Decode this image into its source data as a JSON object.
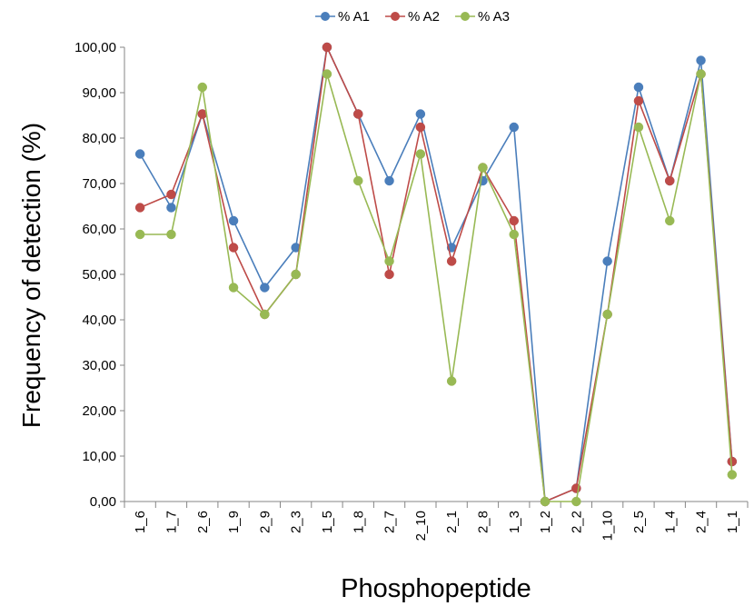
{
  "chart_data": {
    "type": "line",
    "title": "",
    "xlabel": "Phosphopeptide",
    "ylabel": "Frequency of detection (%)",
    "ylim": [
      0,
      100
    ],
    "yticks": [
      "0,00",
      "10,00",
      "20,00",
      "30,00",
      "40,00",
      "50,00",
      "60,00",
      "70,00",
      "80,00",
      "90,00",
      "100,00"
    ],
    "grid": false,
    "legend_position": "top",
    "categories": [
      "1_6",
      "1_7",
      "2_6",
      "1_9",
      "2_9",
      "2_3",
      "1_5",
      "1_8",
      "2_7",
      "2_10",
      "2_1",
      "2_8",
      "1_3",
      "1_2",
      "2_2",
      "1_10",
      "2_5",
      "1_4",
      "2_4",
      "1_1"
    ],
    "series": [
      {
        "name": "% A1",
        "color": "#4a7ebb",
        "values": [
          76.5,
          64.7,
          85.3,
          61.8,
          47.1,
          55.9,
          100.0,
          85.3,
          70.6,
          85.3,
          55.9,
          70.6,
          82.4,
          0.0,
          2.9,
          52.9,
          91.2,
          70.6,
          97.1,
          8.8
        ]
      },
      {
        "name": "% A2",
        "color": "#be4b48",
        "values": [
          64.7,
          67.6,
          85.3,
          55.9,
          41.2,
          50.0,
          100.0,
          85.3,
          50.0,
          82.4,
          52.9,
          73.5,
          61.8,
          0.0,
          2.9,
          41.2,
          88.2,
          70.6,
          94.1,
          8.8
        ]
      },
      {
        "name": "% A3",
        "color": "#98b954",
        "values": [
          58.8,
          58.8,
          91.2,
          47.1,
          41.2,
          50.0,
          94.1,
          70.6,
          52.9,
          76.5,
          26.5,
          73.5,
          58.8,
          0.0,
          0.0,
          41.2,
          82.4,
          61.8,
          94.1,
          5.9
        ]
      }
    ]
  }
}
